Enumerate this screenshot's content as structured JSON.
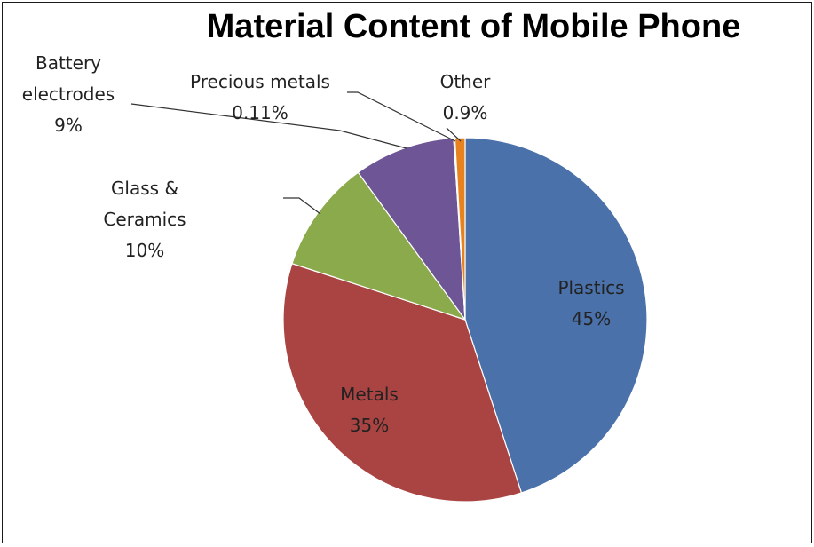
{
  "chart_data": {
    "type": "pie",
    "title": "Material Content of Mobile Phone",
    "slices": [
      {
        "name": "Plastics",
        "value": 45,
        "label_lines": [
          "Plastics",
          "45%"
        ],
        "color": "#4A71A9"
      },
      {
        "name": "Metals",
        "value": 35,
        "label_lines": [
          "Metals",
          "35%"
        ],
        "color": "#A94442"
      },
      {
        "name": "Glass & Ceramics",
        "value": 10,
        "label_lines": [
          "Glass &",
          "Ceramics",
          "10%"
        ],
        "color": "#8BAA4B"
      },
      {
        "name": "Battery electrodes",
        "value": 9,
        "label_lines": [
          "Battery",
          "electrodes",
          "9%"
        ],
        "color": "#6E5696"
      },
      {
        "name": "Precious metals",
        "value": 0.11,
        "label_lines": [
          "Precious metals",
          "0.11%"
        ],
        "color": "#3F8FA6"
      },
      {
        "name": "Other",
        "value": 0.9,
        "label_lines": [
          "Other",
          "0.9%"
        ],
        "color": "#E8821E"
      }
    ],
    "start_angle_deg": 0,
    "direction": "clockwise"
  }
}
